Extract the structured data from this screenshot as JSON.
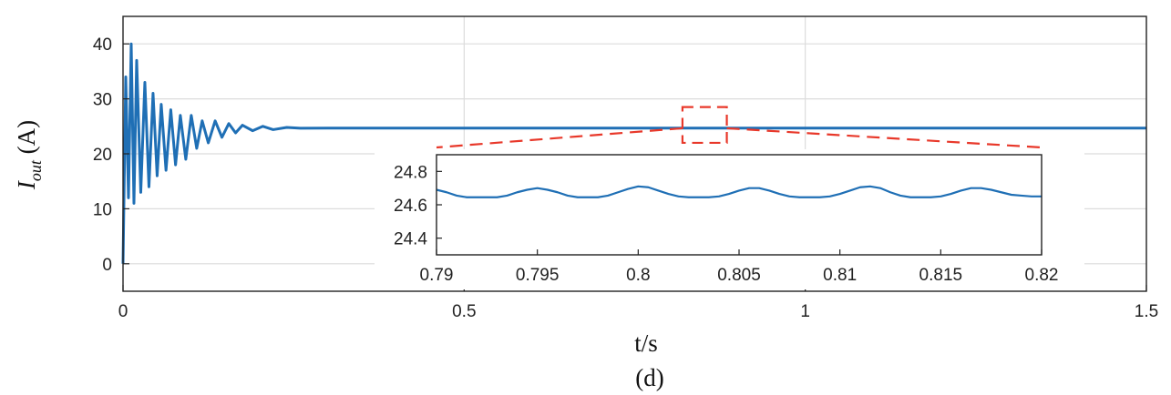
{
  "chart_data": [
    {
      "type": "line",
      "panel": "main",
      "xlabel": "t/s",
      "ylabel": {
        "main": "I",
        "subscript": "out",
        "unit": "(A)"
      },
      "caption": "(d)",
      "xlim": [
        0,
        1.5
      ],
      "ylim": [
        -5,
        45
      ],
      "xticks": [
        0,
        0.5,
        1,
        1.5
      ],
      "xtick_labels": [
        "0",
        "0.5",
        "1",
        "1.5"
      ],
      "yticks": [
        0,
        10,
        20,
        30,
        40
      ],
      "ytick_labels": [
        "0",
        "10",
        "20",
        "30",
        "40"
      ],
      "grid": true,
      "series": [
        {
          "color": "#1f6fb5",
          "x": [
            0,
            0.004,
            0.008,
            0.012,
            0.016,
            0.02,
            0.026,
            0.032,
            0.038,
            0.044,
            0.05,
            0.056,
            0.063,
            0.07,
            0.077,
            0.084,
            0.092,
            0.1,
            0.108,
            0.116,
            0.125,
            0.135,
            0.145,
            0.155,
            0.165,
            0.175,
            0.19,
            0.205,
            0.22,
            0.24,
            0.26,
            0.3,
            0.4,
            0.6,
            0.8,
            1.0,
            1.2,
            1.5
          ],
          "y": [
            0,
            34,
            12,
            40,
            11,
            37,
            13,
            33,
            14,
            31,
            16,
            29,
            17,
            28,
            18,
            27,
            19,
            27,
            21,
            26,
            22,
            26,
            23,
            25.5,
            23.8,
            25.2,
            24.2,
            25.0,
            24.4,
            24.8,
            24.65,
            24.68,
            24.68,
            24.68,
            24.68,
            24.68,
            24.68,
            24.68
          ]
        }
      ],
      "highlight_box": {
        "color": "#e8382a",
        "style": "dashed",
        "x_range": [
          0.82,
          0.885
        ],
        "y_range": [
          22,
          28.5
        ]
      }
    },
    {
      "type": "line",
      "panel": "inset",
      "xlim": [
        0.79,
        0.82
      ],
      "ylim": [
        24.3,
        24.9
      ],
      "xticks": [
        0.79,
        0.795,
        0.8,
        0.805,
        0.81,
        0.815,
        0.82
      ],
      "xtick_labels": [
        "0.79",
        "0.795",
        "0.8",
        "0.805",
        "0.81",
        "0.815",
        "0.82"
      ],
      "yticks": [
        24.4,
        24.6,
        24.8
      ],
      "ytick_labels": [
        "24.4",
        "24.6",
        "24.8"
      ],
      "grid": false,
      "series": [
        {
          "color": "#1f6fb5",
          "x": [
            0.79,
            0.7905,
            0.791,
            0.7915,
            0.792,
            0.7925,
            0.793,
            0.7935,
            0.794,
            0.7945,
            0.795,
            0.7955,
            0.796,
            0.7965,
            0.797,
            0.7975,
            0.798,
            0.7985,
            0.799,
            0.7995,
            0.8,
            0.8005,
            0.801,
            0.8015,
            0.802,
            0.8025,
            0.803,
            0.8035,
            0.804,
            0.8045,
            0.805,
            0.8055,
            0.806,
            0.8065,
            0.807,
            0.8075,
            0.808,
            0.8085,
            0.809,
            0.8095,
            0.81,
            0.8105,
            0.811,
            0.8115,
            0.812,
            0.8125,
            0.813,
            0.8135,
            0.814,
            0.8145,
            0.815,
            0.8155,
            0.816,
            0.8165,
            0.817,
            0.8175,
            0.818,
            0.8185,
            0.819,
            0.8195,
            0.82
          ],
          "y": [
            24.69,
            24.675,
            24.655,
            24.645,
            24.645,
            24.645,
            24.645,
            24.655,
            24.675,
            24.69,
            24.7,
            24.69,
            24.675,
            24.655,
            24.645,
            24.645,
            24.645,
            24.655,
            24.675,
            24.695,
            24.71,
            24.705,
            24.685,
            24.665,
            24.65,
            24.645,
            24.645,
            24.645,
            24.65,
            24.665,
            24.685,
            24.7,
            24.7,
            24.685,
            24.665,
            24.65,
            24.645,
            24.645,
            24.645,
            24.65,
            24.665,
            24.685,
            24.705,
            24.71,
            24.7,
            24.675,
            24.655,
            24.645,
            24.645,
            24.645,
            24.65,
            24.665,
            24.685,
            24.7,
            24.7,
            24.69,
            24.675,
            24.66,
            24.655,
            24.65,
            24.65
          ]
        }
      ]
    }
  ]
}
